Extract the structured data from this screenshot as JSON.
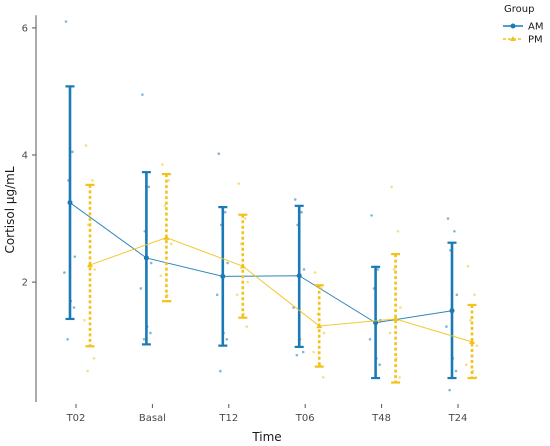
{
  "chart_data": {
    "type": "line",
    "title": "",
    "xlabel": "Time",
    "ylabel": "Cortisol µg/mL",
    "categories": [
      "T02",
      "Basal",
      "T12",
      "T06",
      "T48",
      "T24"
    ],
    "yticks": [
      2,
      4,
      6
    ],
    "ylim": [
      0.5,
      6.2
    ],
    "grid": false,
    "legend": {
      "title": "Group",
      "placement": "top-right"
    },
    "series": [
      {
        "name": "AM",
        "color": "#1a7ab5",
        "style": "solid",
        "marker": "circle",
        "values": [
          3.25,
          2.38,
          2.09,
          2.1,
          1.36,
          1.55
        ],
        "upper": [
          5.08,
          3.73,
          3.18,
          3.2,
          2.24,
          2.62
        ],
        "lower": [
          1.42,
          1.02,
          1.0,
          0.98,
          0.49,
          0.49
        ],
        "points": [
          [
            6.1,
            4.05,
            3.6,
            2.4,
            2.15,
            1.7,
            1.6,
            1.1
          ],
          [
            4.95,
            3.5,
            2.8,
            2.3,
            1.9,
            1.3,
            1.2,
            1.1
          ],
          [
            4.02,
            3.1,
            2.9,
            2.3,
            1.8,
            1.2,
            1.1,
            0.6
          ],
          [
            3.3,
            3.1,
            2.9,
            2.2,
            1.6,
            1.1,
            0.9,
            0.85
          ],
          [
            3.05,
            2.2,
            1.9,
            1.4,
            1.1,
            0.8,
            0.7
          ],
          [
            3.0,
            2.8,
            2.5,
            1.8,
            1.3,
            0.8,
            0.6,
            0.3
          ]
        ]
      },
      {
        "name": "PM",
        "color": "#f2c21b",
        "style": "dashed",
        "marker": "triangle",
        "values": [
          2.27,
          2.7,
          2.25,
          1.31,
          1.42,
          1.06
        ],
        "upper": [
          3.53,
          3.7,
          3.06,
          1.95,
          2.44,
          1.64
        ],
        "lower": [
          0.99,
          1.7,
          1.44,
          0.67,
          0.42,
          0.49
        ],
        "points": [
          [
            4.15,
            3.6,
            2.9,
            2.2,
            1.4,
            1.0,
            0.8,
            0.6
          ],
          [
            3.85,
            3.6,
            3.2,
            2.6,
            2.1,
            1.8,
            1.7
          ],
          [
            3.55,
            3.0,
            2.6,
            2.0,
            1.8,
            1.5,
            1.3
          ],
          [
            2.15,
            1.9,
            1.5,
            1.2,
            0.9,
            0.7,
            0.5
          ],
          [
            3.5,
            2.8,
            2.2,
            1.6,
            1.2,
            0.8,
            0.5
          ],
          [
            2.25,
            1.8,
            1.4,
            1.0,
            0.7,
            0.6,
            0.5
          ]
        ]
      }
    ]
  }
}
